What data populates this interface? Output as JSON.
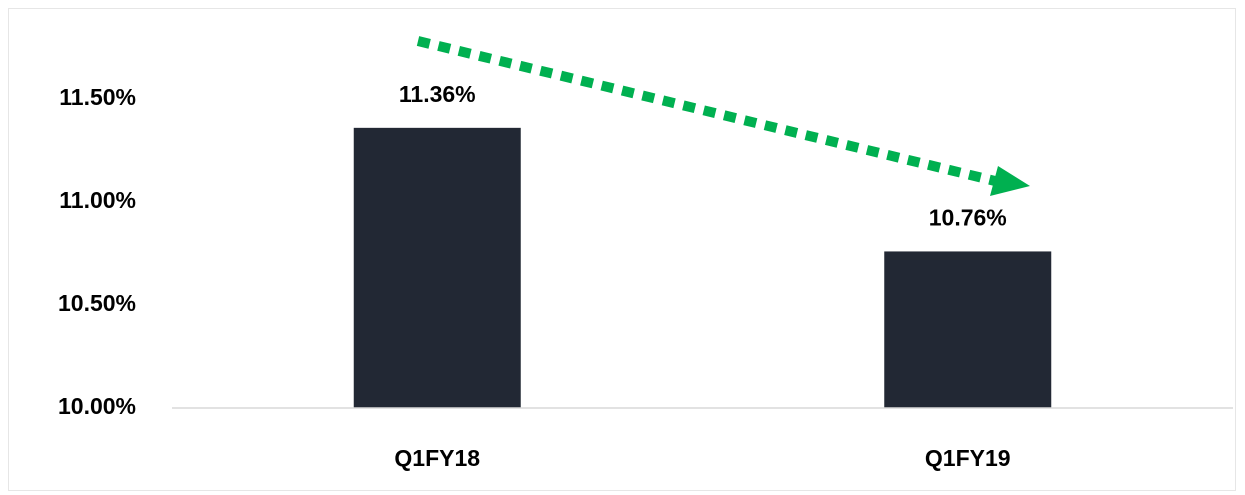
{
  "chart_data": {
    "type": "bar",
    "categories": [
      "Q1FY18",
      "Q1FY19"
    ],
    "values": [
      11.36,
      10.76
    ],
    "value_labels": [
      "11.36%",
      "10.76%"
    ],
    "color": "#222834",
    "ylim": [
      10,
      11.9
    ],
    "yticks": [
      {
        "value": 10,
        "label": "10.00%"
      },
      {
        "value": 10.5,
        "label": "10.50%"
      },
      {
        "value": 11,
        "label": "11.00%"
      },
      {
        "value": 11.5,
        "label": "11.50%"
      }
    ],
    "grid": false
  }
}
